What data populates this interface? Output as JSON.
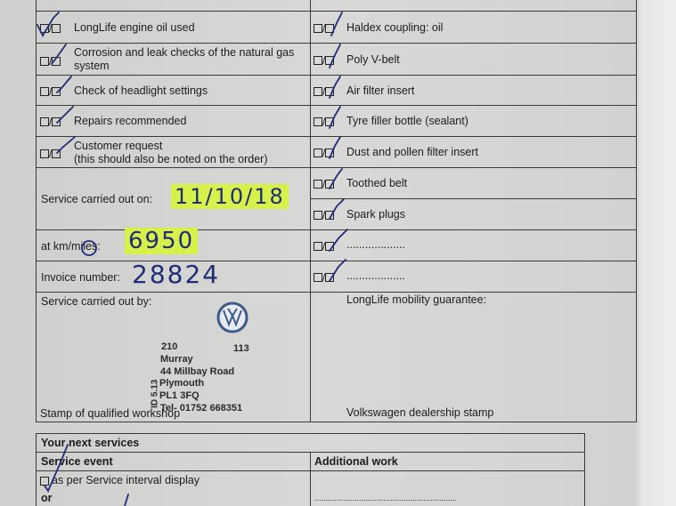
{
  "left_items": [
    {
      "label": "LongLife engine oil used"
    },
    {
      "label": "Corrosion and leak checks of the natural gas",
      "label2": "system"
    },
    {
      "label": "Check of headlight settings"
    },
    {
      "label": "Repairs recommended"
    },
    {
      "label": "Customer request",
      "label2": "(this should also be noted on the order)"
    }
  ],
  "right_items": [
    {
      "label": "Haldex coupling: oil"
    },
    {
      "label": "Poly V-belt"
    },
    {
      "label": "Air filter insert"
    },
    {
      "label": "Tyre filler bottle (sealant)"
    },
    {
      "label": "Dust and pollen filter insert"
    },
    {
      "label": "Toothed belt"
    },
    {
      "label": "Spark plugs"
    },
    {
      "label": "..................."
    },
    {
      "label": "..................."
    }
  ],
  "checkbox_sep": "/",
  "fields": {
    "service_date_label": "Service carried out on:",
    "service_date_value": "11/10/18",
    "km_label": "at km/miles:",
    "km_value": "6950",
    "invoice_label": "Invoice number:",
    "invoice_value": "28824",
    "carried_by_label": "Service carried out by:",
    "workshop_stamp_label": "Stamp of qualified workshop",
    "guarantee_label": "LongLife mobility guarantee:",
    "dealer_stamp_label": "Volkswagen dealership stamp"
  },
  "stamp": {
    "code1": "210",
    "code2": "113",
    "name": "Murray",
    "street": "44 Millbay Road",
    "city": "Plymouth",
    "postcode": "PL1 3FQ",
    "phone": "Tel- 01752 668351",
    "side": "ID 5.13"
  },
  "next_services": {
    "title": "Your next services",
    "col1": "Service event",
    "col2": "Additional work",
    "option1": "as per Service interval display",
    "or": "or",
    "dots": "................................................................"
  },
  "colors": {
    "ink": "#1d2d78",
    "highlight": "#d8f04a"
  }
}
